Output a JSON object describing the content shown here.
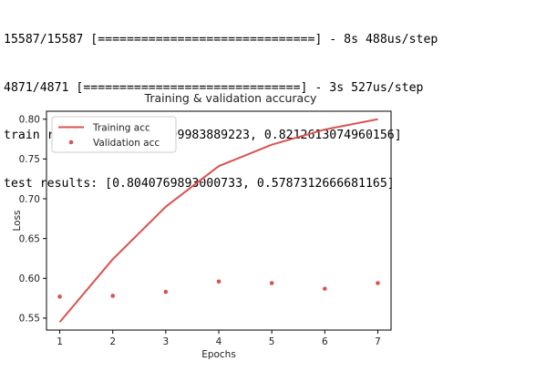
{
  "console": {
    "lines": [
      "15587/15587 [==============================] - 8s 488us/step",
      "4871/4871 [==============================] - 3s 527us/step",
      "train results: [0.3330709983889223, 0.8212613074960156]",
      "test results: [0.8040769893000733, 0.5787312666681165]"
    ]
  },
  "chart_data": {
    "type": "line",
    "title": "Training & validation accuracy",
    "xlabel": "Epochs",
    "ylabel": "Loss",
    "xlim": [
      0.75,
      7.25
    ],
    "ylim": [
      0.535,
      0.81
    ],
    "xticks": [
      1,
      2,
      3,
      4,
      5,
      6,
      7
    ],
    "yticks": [
      0.55,
      0.6,
      0.65,
      0.7,
      0.75,
      0.8
    ],
    "ytick_labels": [
      "0.55",
      "0.60",
      "0.65",
      "0.70",
      "0.75",
      "0.80"
    ],
    "grid": false,
    "legend_position": "top-left",
    "x": [
      1,
      2,
      3,
      4,
      5,
      6,
      7
    ],
    "series": [
      {
        "name": "Training acc",
        "style": "line",
        "color": "#d9534f",
        "values": [
          0.545,
          0.624,
          0.69,
          0.741,
          0.768,
          0.787,
          0.8
        ]
      },
      {
        "name": "Validation acc",
        "style": "points",
        "color": "#d9534f",
        "values": [
          0.577,
          0.578,
          0.583,
          0.596,
          0.594,
          0.587,
          0.594
        ]
      }
    ]
  }
}
